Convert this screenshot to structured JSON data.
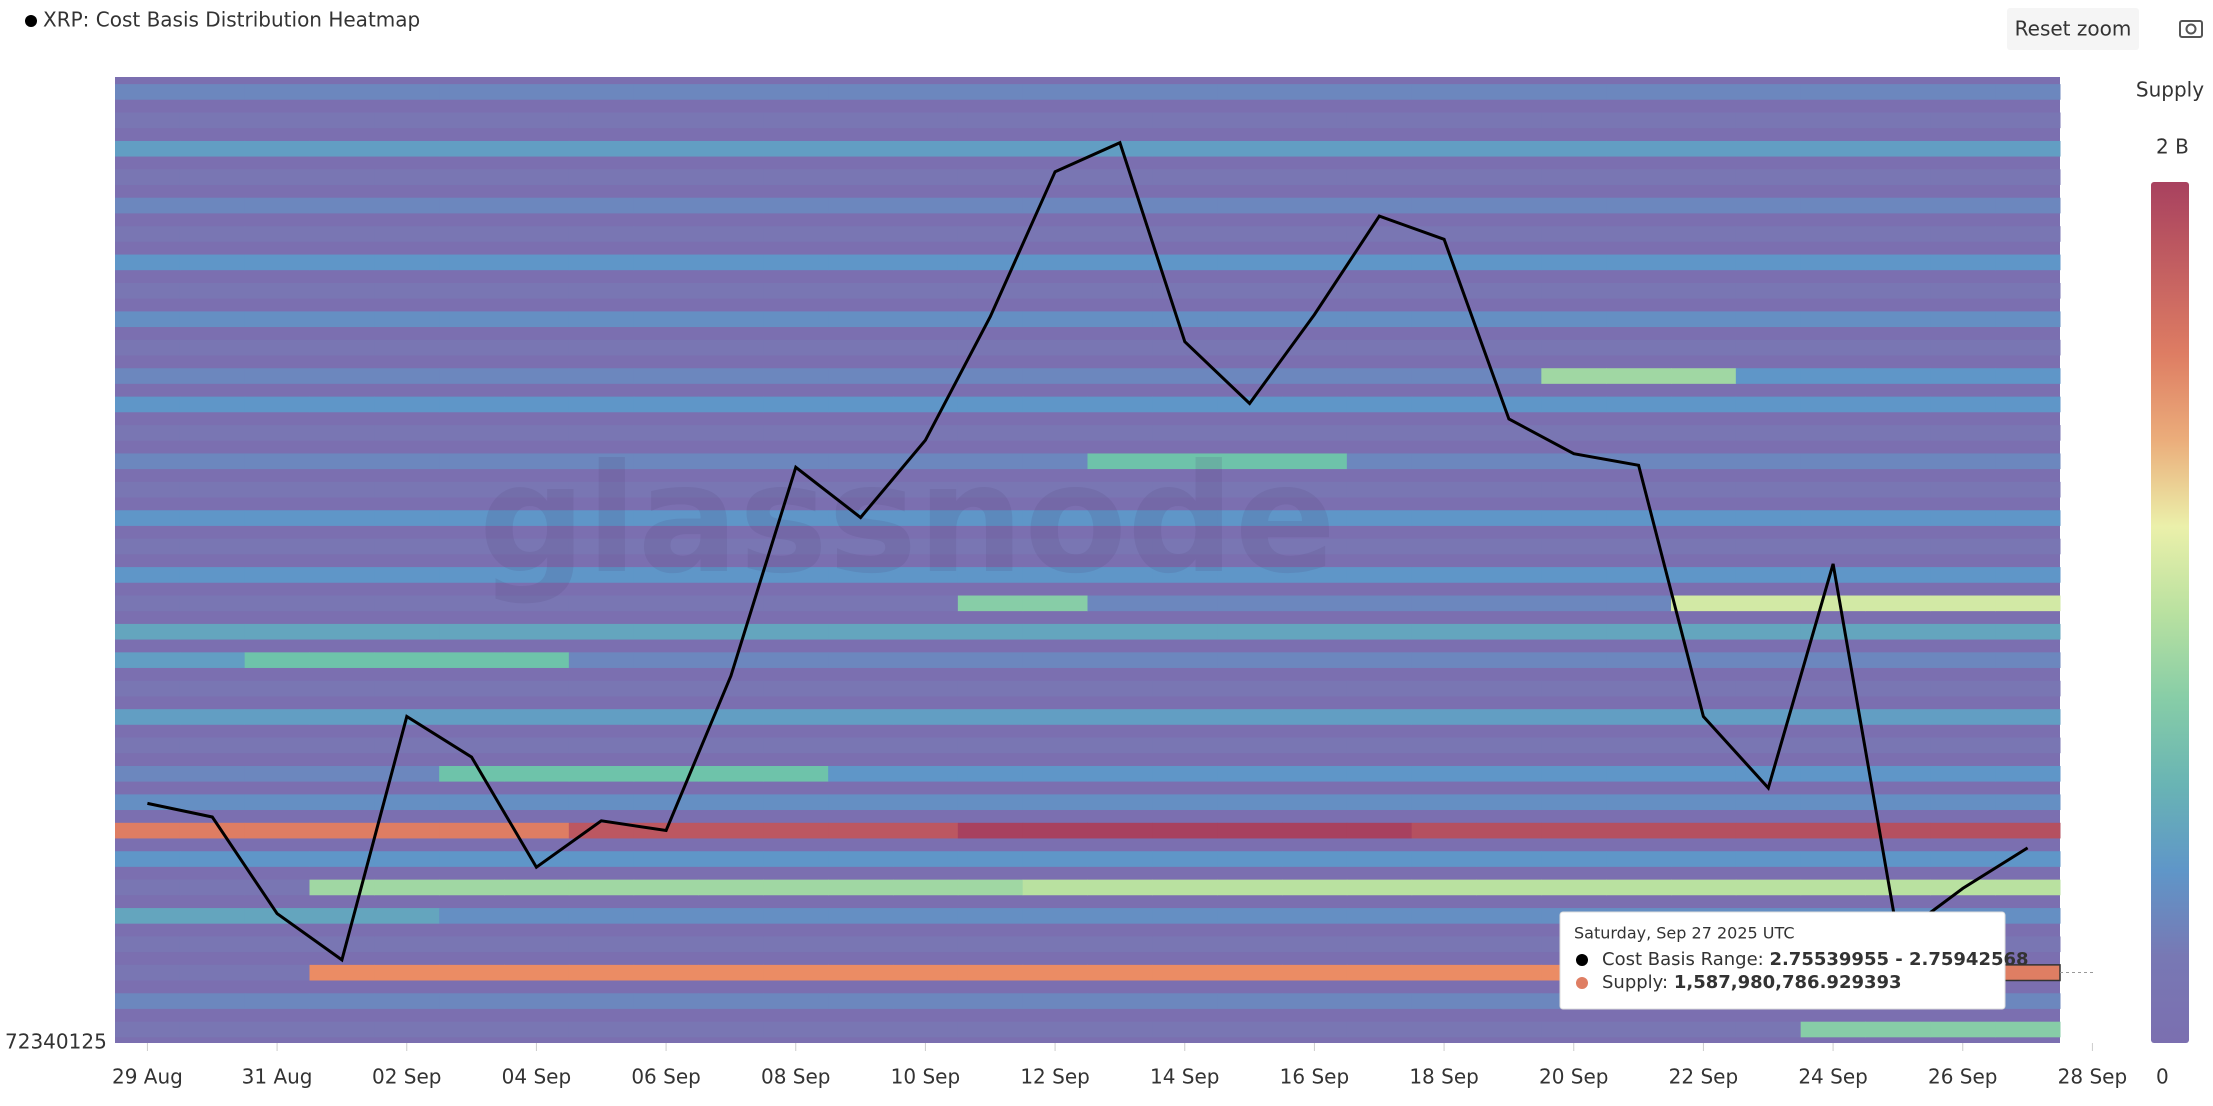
{
  "chart_data": {
    "type": "heatmap",
    "title": "XRP: Cost Basis Distribution Heatmap",
    "reset_button": "Reset zoom",
    "watermark": "glassnode",
    "y_min_label": "72340125",
    "x": [
      "2025-08-29",
      "2025-08-30",
      "2025-08-31",
      "2025-09-01",
      "2025-09-02",
      "2025-09-03",
      "2025-09-04",
      "2025-09-05",
      "2025-09-06",
      "2025-09-07",
      "2025-09-08",
      "2025-09-09",
      "2025-09-10",
      "2025-09-11",
      "2025-09-12",
      "2025-09-13",
      "2025-09-14",
      "2025-09-15",
      "2025-09-16",
      "2025-09-17",
      "2025-09-18",
      "2025-09-19",
      "2025-09-20",
      "2025-09-21",
      "2025-09-22",
      "2025-09-23",
      "2025-09-24",
      "2025-09-25",
      "2025-09-26",
      "2025-09-27"
    ],
    "xlim": [
      "2025-08-28T12:00:00Z",
      "2025-09-27T12:00:00Z"
    ],
    "xticks": [
      {
        "value": "2025-08-29",
        "label": "29 Aug"
      },
      {
        "value": "2025-08-31",
        "label": "31 Aug"
      },
      {
        "value": "2025-09-02",
        "label": "02 Sep"
      },
      {
        "value": "2025-09-04",
        "label": "04 Sep"
      },
      {
        "value": "2025-09-06",
        "label": "06 Sep"
      },
      {
        "value": "2025-09-08",
        "label": "08 Sep"
      },
      {
        "value": "2025-09-10",
        "label": "10 Sep"
      },
      {
        "value": "2025-09-12",
        "label": "12 Sep"
      },
      {
        "value": "2025-09-14",
        "label": "14 Sep"
      },
      {
        "value": "2025-09-16",
        "label": "16 Sep"
      },
      {
        "value": "2025-09-18",
        "label": "18 Sep"
      },
      {
        "value": "2025-09-20",
        "label": "20 Sep"
      },
      {
        "value": "2025-09-22",
        "label": "22 Sep"
      },
      {
        "value": "2025-09-24",
        "label": "24 Sep"
      },
      {
        "value": "2025-09-26",
        "label": "26 Sep"
      },
      {
        "value": "2025-09-28",
        "label": "28 Sep"
      }
    ],
    "ylim": [
      2.72,
      3.22
    ],
    "line": {
      "color": "#000000",
      "values": [
        2.844,
        2.837,
        2.787,
        2.763,
        2.889,
        2.868,
        2.811,
        2.835,
        2.83,
        2.91,
        3.018,
        2.992,
        3.032,
        3.096,
        3.171,
        3.186,
        3.083,
        3.051,
        3.097,
        3.148,
        3.136,
        3.043,
        3.025,
        3.019,
        2.889,
        2.852,
        2.968,
        2.775,
        2.8,
        2.821
      ]
    },
    "colorbar": {
      "title": "Supply",
      "zlim": [
        0,
        2
      ],
      "ticks": [
        {
          "value": 2,
          "label": "2 B"
        },
        0
      ]
    },
    "heatmap": {
      "z": [
        [
          0.15,
          0.15,
          0.15,
          0.15,
          0.15,
          0.15,
          0.15,
          0.15,
          0.15,
          0.15,
          0.15,
          0.15,
          0.15,
          0.15,
          0.15,
          0.15,
          0.15,
          0.15,
          0.15,
          0.15,
          0.15,
          0.15,
          0.15,
          0.15,
          0.15,
          0.15,
          0.8,
          0.8,
          0.8,
          0.8
        ],
        [
          0.3,
          0.3,
          0.3,
          0.3,
          0.3,
          0.3,
          0.3,
          0.3,
          0.3,
          0.3,
          0.3,
          0.3,
          0.3,
          0.3,
          0.3,
          0.3,
          0.3,
          0.3,
          0.3,
          0.3,
          0.3,
          0.3,
          0.3,
          0.3,
          0.3,
          0.3,
          0.3,
          0.3,
          0.3,
          0.3
        ],
        [
          0.15,
          0.15,
          0.15,
          1.5,
          1.5,
          1.5,
          1.5,
          1.5,
          1.5,
          1.5,
          1.5,
          1.5,
          1.5,
          1.5,
          1.5,
          1.5,
          1.5,
          1.5,
          1.5,
          1.5,
          1.5,
          1.5,
          1.5,
          1.5,
          1.5,
          1.5,
          1.5,
          1.5,
          1.5,
          1.59
        ],
        [
          0.15,
          0.15,
          0.15,
          0.15,
          0.15,
          0.15,
          0.15,
          0.15,
          0.15,
          0.15,
          0.15,
          0.15,
          0.15,
          0.15,
          0.15,
          0.15,
          0.15,
          0.15,
          0.15,
          0.15,
          0.15,
          0.15,
          0.15,
          0.15,
          0.15,
          0.15,
          0.15,
          0.15,
          0.15,
          0.15
        ],
        [
          0.5,
          0.5,
          0.5,
          0.5,
          0.5,
          0.35,
          0.35,
          0.35,
          0.35,
          0.35,
          0.35,
          0.35,
          0.35,
          0.35,
          0.35,
          0.35,
          0.35,
          0.35,
          0.35,
          0.35,
          0.35,
          0.35,
          0.35,
          0.35,
          0.35,
          0.35,
          0.35,
          0.35,
          0.35,
          0.35
        ],
        [
          0.15,
          0.15,
          0.15,
          0.9,
          0.9,
          0.9,
          0.9,
          0.9,
          0.9,
          0.9,
          0.9,
          0.9,
          0.9,
          0.9,
          1.0,
          1.0,
          1.0,
          1.0,
          1.0,
          1.0,
          1.0,
          1.0,
          1.0,
          1.0,
          1.0,
          1.0,
          1.0,
          1.0,
          1.0,
          1.0
        ],
        [
          0.4,
          0.4,
          0.4,
          0.4,
          0.4,
          0.4,
          0.4,
          0.4,
          0.4,
          0.4,
          0.4,
          0.4,
          0.4,
          0.4,
          0.4,
          0.4,
          0.4,
          0.4,
          0.4,
          0.4,
          0.4,
          0.4,
          0.4,
          0.4,
          0.4,
          0.4,
          0.4,
          0.4,
          0.4,
          0.4
        ],
        [
          1.6,
          1.6,
          1.6,
          1.6,
          1.6,
          1.6,
          1.6,
          1.85,
          1.85,
          1.85,
          1.85,
          1.85,
          1.85,
          2.0,
          2.0,
          2.0,
          2.0,
          2.0,
          2.0,
          2.0,
          1.9,
          1.9,
          1.9,
          1.9,
          1.9,
          1.9,
          1.9,
          1.9,
          1.9,
          1.9
        ],
        [
          0.35,
          0.35,
          0.35,
          0.35,
          0.35,
          0.35,
          0.35,
          0.35,
          0.35,
          0.35,
          0.35,
          0.35,
          0.35,
          0.35,
          0.35,
          0.35,
          0.35,
          0.35,
          0.35,
          0.35,
          0.35,
          0.35,
          0.35,
          0.35,
          0.35,
          0.35,
          0.35,
          0.35,
          0.35,
          0.35
        ],
        [
          0.3,
          0.3,
          0.3,
          0.3,
          0.3,
          0.7,
          0.7,
          0.7,
          0.7,
          0.7,
          0.7,
          0.4,
          0.4,
          0.4,
          0.4,
          0.4,
          0.4,
          0.4,
          0.4,
          0.4,
          0.4,
          0.4,
          0.4,
          0.4,
          0.4,
          0.4,
          0.4,
          0.4,
          0.4,
          0.4
        ],
        [
          0.15,
          0.15,
          0.15,
          0.15,
          0.15,
          0.15,
          0.15,
          0.15,
          0.15,
          0.15,
          0.15,
          0.15,
          0.15,
          0.15,
          0.15,
          0.15,
          0.15,
          0.15,
          0.15,
          0.15,
          0.15,
          0.15,
          0.15,
          0.15,
          0.15,
          0.15,
          0.15,
          0.15,
          0.15,
          0.15
        ],
        [
          0.45,
          0.45,
          0.45,
          0.45,
          0.45,
          0.45,
          0.45,
          0.45,
          0.45,
          0.45,
          0.45,
          0.45,
          0.45,
          0.45,
          0.45,
          0.45,
          0.45,
          0.45,
          0.45,
          0.45,
          0.45,
          0.45,
          0.45,
          0.45,
          0.45,
          0.45,
          0.45,
          0.45,
          0.45,
          0.45
        ],
        [
          0.15,
          0.15,
          0.15,
          0.15,
          0.15,
          0.15,
          0.15,
          0.15,
          0.15,
          0.15,
          0.15,
          0.15,
          0.15,
          0.15,
          0.15,
          0.15,
          0.15,
          0.15,
          0.15,
          0.15,
          0.15,
          0.15,
          0.15,
          0.15,
          0.15,
          0.15,
          0.15,
          0.15,
          0.15,
          0.15
        ],
        [
          0.45,
          0.45,
          0.7,
          0.7,
          0.7,
          0.7,
          0.7,
          0.3,
          0.3,
          0.3,
          0.3,
          0.3,
          0.3,
          0.3,
          0.3,
          0.3,
          0.3,
          0.3,
          0.3,
          0.3,
          0.3,
          0.3,
          0.3,
          0.3,
          0.3,
          0.3,
          0.3,
          0.3,
          0.3,
          0.3
        ],
        [
          0.5,
          0.5,
          0.5,
          0.5,
          0.5,
          0.5,
          0.5,
          0.5,
          0.5,
          0.5,
          0.5,
          0.5,
          0.5,
          0.5,
          0.5,
          0.5,
          0.5,
          0.5,
          0.5,
          0.5,
          0.5,
          0.5,
          0.5,
          0.5,
          0.5,
          0.5,
          0.5,
          0.5,
          0.5,
          0.5
        ],
        [
          0.15,
          0.15,
          0.15,
          0.15,
          0.15,
          0.15,
          0.15,
          0.15,
          0.15,
          0.15,
          0.15,
          0.15,
          0.15,
          0.8,
          0.8,
          0.3,
          0.3,
          0.3,
          0.3,
          0.3,
          0.3,
          0.3,
          0.3,
          0.3,
          1.1,
          1.1,
          1.1,
          1.1,
          1.1,
          1.1
        ],
        [
          0.4,
          0.4,
          0.4,
          0.4,
          0.4,
          0.4,
          0.4,
          0.4,
          0.4,
          0.4,
          0.4,
          0.4,
          0.4,
          0.4,
          0.4,
          0.4,
          0.4,
          0.4,
          0.4,
          0.4,
          0.4,
          0.4,
          0.4,
          0.4,
          0.4,
          0.4,
          0.4,
          0.4,
          0.4,
          0.4
        ],
        [
          0.15,
          0.15,
          0.15,
          0.15,
          0.15,
          0.15,
          0.15,
          0.15,
          0.15,
          0.15,
          0.15,
          0.15,
          0.15,
          0.15,
          0.15,
          0.15,
          0.15,
          0.15,
          0.15,
          0.15,
          0.15,
          0.15,
          0.15,
          0.15,
          0.15,
          0.15,
          0.15,
          0.15,
          0.15,
          0.15
        ],
        [
          0.4,
          0.4,
          0.4,
          0.4,
          0.4,
          0.4,
          0.4,
          0.4,
          0.4,
          0.4,
          0.4,
          0.4,
          0.4,
          0.4,
          0.4,
          0.4,
          0.4,
          0.4,
          0.4,
          0.4,
          0.4,
          0.4,
          0.4,
          0.4,
          0.4,
          0.4,
          0.4,
          0.4,
          0.4,
          0.4
        ],
        [
          0.15,
          0.15,
          0.15,
          0.15,
          0.15,
          0.15,
          0.15,
          0.15,
          0.15,
          0.15,
          0.15,
          0.15,
          0.15,
          0.15,
          0.15,
          0.15,
          0.15,
          0.15,
          0.15,
          0.15,
          0.15,
          0.15,
          0.15,
          0.15,
          0.15,
          0.15,
          0.15,
          0.15,
          0.15,
          0.15
        ],
        [
          0.3,
          0.3,
          0.3,
          0.3,
          0.3,
          0.3,
          0.3,
          0.3,
          0.3,
          0.3,
          0.3,
          0.3,
          0.3,
          0.3,
          0.3,
          0.7,
          0.7,
          0.7,
          0.7,
          0.3,
          0.3,
          0.3,
          0.3,
          0.3,
          0.3,
          0.3,
          0.3,
          0.3,
          0.3,
          0.3
        ],
        [
          0.15,
          0.15,
          0.15,
          0.15,
          0.15,
          0.15,
          0.15,
          0.15,
          0.15,
          0.15,
          0.15,
          0.15,
          0.15,
          0.15,
          0.15,
          0.15,
          0.15,
          0.15,
          0.15,
          0.15,
          0.15,
          0.15,
          0.15,
          0.15,
          0.15,
          0.15,
          0.15,
          0.15,
          0.15,
          0.15
        ],
        [
          0.4,
          0.4,
          0.4,
          0.4,
          0.4,
          0.4,
          0.4,
          0.4,
          0.4,
          0.4,
          0.4,
          0.4,
          0.4,
          0.4,
          0.4,
          0.4,
          0.4,
          0.4,
          0.4,
          0.4,
          0.4,
          0.4,
          0.4,
          0.4,
          0.4,
          0.4,
          0.4,
          0.4,
          0.4,
          0.4
        ],
        [
          0.3,
          0.3,
          0.3,
          0.3,
          0.3,
          0.3,
          0.3,
          0.3,
          0.3,
          0.3,
          0.3,
          0.3,
          0.3,
          0.3,
          0.3,
          0.3,
          0.3,
          0.3,
          0.3,
          0.3,
          0.3,
          0.3,
          0.9,
          0.9,
          0.9,
          0.4,
          0.4,
          0.4,
          0.4,
          0.4
        ],
        [
          0.15,
          0.15,
          0.15,
          0.15,
          0.15,
          0.15,
          0.15,
          0.15,
          0.15,
          0.15,
          0.15,
          0.15,
          0.15,
          0.15,
          0.15,
          0.15,
          0.15,
          0.15,
          0.15,
          0.15,
          0.15,
          0.15,
          0.15,
          0.15,
          0.15,
          0.15,
          0.15,
          0.15,
          0.15,
          0.15
        ],
        [
          0.35,
          0.35,
          0.35,
          0.35,
          0.35,
          0.35,
          0.35,
          0.35,
          0.35,
          0.35,
          0.35,
          0.35,
          0.35,
          0.35,
          0.35,
          0.35,
          0.35,
          0.35,
          0.35,
          0.35,
          0.35,
          0.35,
          0.35,
          0.35,
          0.35,
          0.35,
          0.35,
          0.35,
          0.35,
          0.35
        ],
        [
          0.15,
          0.15,
          0.15,
          0.15,
          0.15,
          0.15,
          0.15,
          0.15,
          0.15,
          0.15,
          0.15,
          0.15,
          0.15,
          0.15,
          0.15,
          0.15,
          0.15,
          0.15,
          0.15,
          0.15,
          0.15,
          0.15,
          0.15,
          0.15,
          0.15,
          0.15,
          0.15,
          0.15,
          0.15,
          0.15
        ],
        [
          0.4,
          0.4,
          0.4,
          0.4,
          0.4,
          0.4,
          0.4,
          0.4,
          0.4,
          0.4,
          0.4,
          0.4,
          0.4,
          0.4,
          0.4,
          0.4,
          0.4,
          0.4,
          0.4,
          0.4,
          0.4,
          0.4,
          0.4,
          0.4,
          0.4,
          0.4,
          0.4,
          0.4,
          0.4,
          0.4
        ],
        [
          0.15,
          0.15,
          0.15,
          0.15,
          0.15,
          0.15,
          0.15,
          0.15,
          0.15,
          0.15,
          0.15,
          0.15,
          0.15,
          0.15,
          0.15,
          0.15,
          0.15,
          0.15,
          0.15,
          0.15,
          0.15,
          0.15,
          0.15,
          0.15,
          0.15,
          0.15,
          0.15,
          0.15,
          0.15,
          0.15
        ],
        [
          0.3,
          0.3,
          0.3,
          0.3,
          0.3,
          0.3,
          0.3,
          0.3,
          0.3,
          0.3,
          0.3,
          0.3,
          0.3,
          0.3,
          0.3,
          0.3,
          0.3,
          0.3,
          0.3,
          0.3,
          0.3,
          0.3,
          0.3,
          0.3,
          0.3,
          0.3,
          0.3,
          0.3,
          0.3,
          0.3
        ],
        [
          0.15,
          0.15,
          0.15,
          0.15,
          0.15,
          0.15,
          0.15,
          0.15,
          0.15,
          0.15,
          0.15,
          0.15,
          0.15,
          0.15,
          0.15,
          0.15,
          0.15,
          0.15,
          0.15,
          0.15,
          0.15,
          0.15,
          0.15,
          0.15,
          0.15,
          0.15,
          0.15,
          0.15,
          0.15,
          0.15
        ],
        [
          0.45,
          0.45,
          0.45,
          0.45,
          0.45,
          0.45,
          0.45,
          0.45,
          0.45,
          0.45,
          0.45,
          0.45,
          0.45,
          0.45,
          0.45,
          0.45,
          0.45,
          0.45,
          0.45,
          0.45,
          0.45,
          0.45,
          0.45,
          0.45,
          0.45,
          0.45,
          0.45,
          0.45,
          0.45,
          0.45
        ],
        [
          0.15,
          0.15,
          0.15,
          0.15,
          0.15,
          0.15,
          0.15,
          0.15,
          0.15,
          0.15,
          0.15,
          0.15,
          0.15,
          0.15,
          0.15,
          0.15,
          0.15,
          0.15,
          0.15,
          0.15,
          0.15,
          0.15,
          0.15,
          0.15,
          0.15,
          0.15,
          0.15,
          0.15,
          0.15,
          0.15
        ],
        [
          0.3,
          0.3,
          0.3,
          0.3,
          0.3,
          0.3,
          0.3,
          0.3,
          0.3,
          0.3,
          0.3,
          0.3,
          0.3,
          0.3,
          0.3,
          0.3,
          0.3,
          0.3,
          0.3,
          0.3,
          0.3,
          0.3,
          0.3,
          0.3,
          0.3,
          0.3,
          0.3,
          0.3,
          0.3,
          0.3
        ]
      ]
    },
    "tooltip": {
      "date": "Saturday, Sep 27 2025 UTC",
      "range_label": "Cost Basis Range: ",
      "range_value": "2.75539955 - 2.75942568",
      "supply_label": "Supply: ",
      "supply_value": "1,587,980,786.929393"
    }
  }
}
